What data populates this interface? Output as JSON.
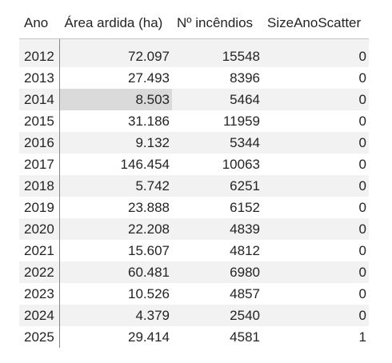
{
  "table": {
    "columns": [
      "Ano",
      "Área ardida (ha)",
      "Nº incêndios",
      "SizeAnoScatter"
    ],
    "rows": [
      [
        "2012",
        "72.097",
        "15548",
        "0"
      ],
      [
        "2013",
        "27.493",
        "8396",
        "0"
      ],
      [
        "2014",
        "8.503",
        "5464",
        "0"
      ],
      [
        "2015",
        "31.186",
        "11959",
        "0"
      ],
      [
        "2016",
        "9.132",
        "5344",
        "0"
      ],
      [
        "2017",
        "146.454",
        "10063",
        "0"
      ],
      [
        "2018",
        "5.742",
        "6251",
        "0"
      ],
      [
        "2019",
        "23.888",
        "6152",
        "0"
      ],
      [
        "2020",
        "22.208",
        "4839",
        "0"
      ],
      [
        "2021",
        "15.607",
        "4812",
        "0"
      ],
      [
        "2022",
        "60.481",
        "6980",
        "0"
      ],
      [
        "2023",
        "10.526",
        "4857",
        "0"
      ],
      [
        "2024",
        "4.379",
        "2540",
        "0"
      ],
      [
        "2025",
        "29.414",
        "4581",
        "1"
      ]
    ],
    "highlighted_cell": {
      "row": 2,
      "column": 1
    }
  }
}
